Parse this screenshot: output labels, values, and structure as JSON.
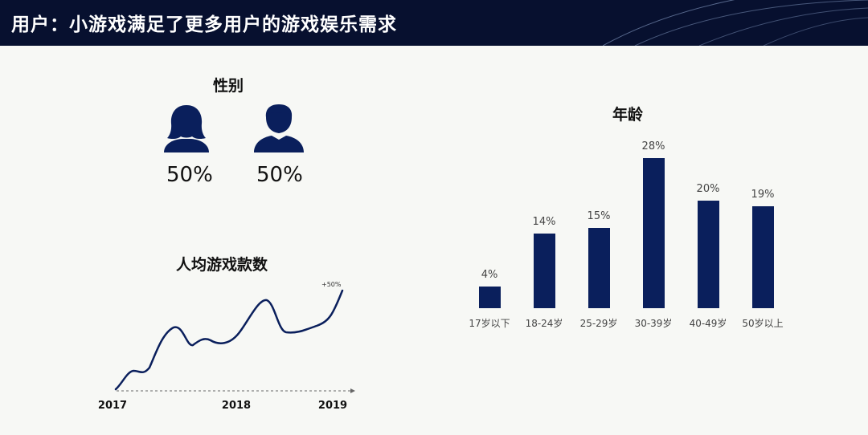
{
  "header": {
    "title": "用户：小游戏满足了更多用户的游戏娱乐需求"
  },
  "colors": {
    "header_bg": "#07102f",
    "bar": "#0a1f5c",
    "line": "#0a1f5c"
  },
  "gender": {
    "title": "性别",
    "items": [
      {
        "icon": "female-user-icon",
        "value": "50%"
      },
      {
        "icon": "male-user-icon",
        "value": "50%"
      }
    ]
  },
  "chart_data": [
    {
      "type": "bar",
      "title": "年龄",
      "categories": [
        "17岁以下",
        "18-24岁",
        "25-29岁",
        "30-39岁",
        "40-49岁",
        "50岁以上"
      ],
      "values": [
        4,
        14,
        15,
        28,
        20,
        19
      ],
      "value_labels": [
        "4%",
        "14%",
        "15%",
        "28%",
        "20%",
        "19%"
      ],
      "ylim": [
        0,
        28
      ],
      "grid": false
    },
    {
      "type": "line",
      "title": "人均游戏款数",
      "x_tick_labels": [
        "2017",
        "2018",
        "2019"
      ],
      "annotation": "+50%",
      "grid": false
    }
  ]
}
